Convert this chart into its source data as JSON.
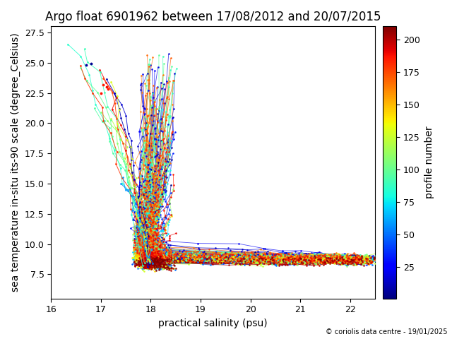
{
  "title": "Argo float 6901962 between 17/08/2012 and 20/07/2015",
  "xlabel": "practical salinity (psu)",
  "ylabel": "sea temperature in-situ its-90 scale (degree_Celsius)",
  "colorbar_label": "profile number",
  "colorbar_ticks": [
    25,
    50,
    75,
    100,
    125,
    150,
    175,
    200
  ],
  "xlim": [
    16,
    22.5
  ],
  "ylim": [
    5.5,
    28
  ],
  "n_profiles": 210,
  "copyright": "© coriolis data centre - 19/01/2025",
  "title_fontsize": 12,
  "label_fontsize": 10,
  "colorbar_fontsize": 10,
  "fig_width": 6.4,
  "fig_height": 4.8
}
